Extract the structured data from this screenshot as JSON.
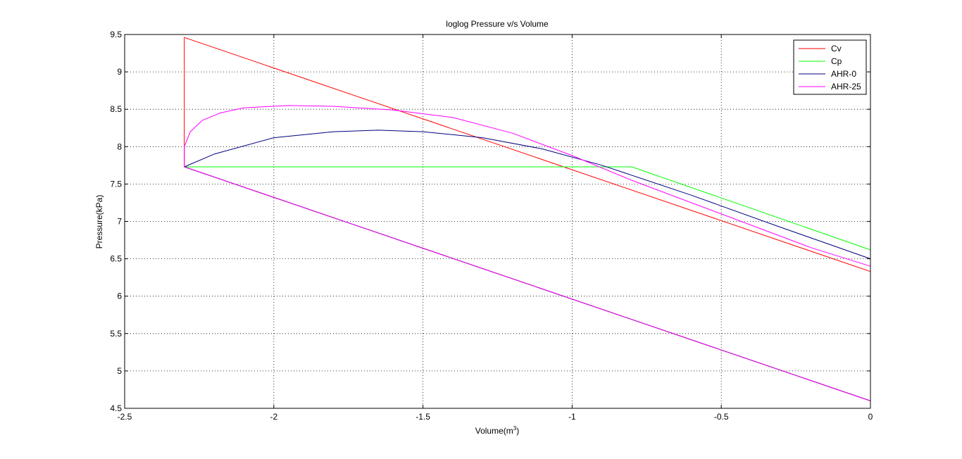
{
  "chart_data": {
    "type": "line",
    "title": "loglog Pressure v/s Volume",
    "xlabel": "Volume(m",
    "xlabel_sup": "3",
    "xlabel_close": ")",
    "ylabel": "Pressure(kPa)",
    "xlim": [
      -2.5,
      0
    ],
    "ylim": [
      4.5,
      9.5
    ],
    "xticks": [
      -2.5,
      -2,
      -1.5,
      -1,
      -0.5,
      0
    ],
    "xtick_labels": [
      "-2.5",
      "-2",
      "-1.5",
      "-1",
      "-0.5",
      "0"
    ],
    "yticks": [
      4.5,
      5,
      5.5,
      6,
      6.5,
      7,
      7.5,
      8,
      8.5,
      9,
      9.5
    ],
    "ytick_labels": [
      "4.5",
      "5",
      "5.5",
      "6",
      "6.5",
      "7",
      "7.5",
      "8",
      "8.5",
      "9",
      "9.5"
    ],
    "grid": true,
    "legend_position": "top-right",
    "series": [
      {
        "name": "Cv",
        "color": "#ff0000",
        "x": [
          0,
          -2.3,
          -2.3,
          0
        ],
        "y": [
          4.6,
          7.73,
          9.46,
          6.33
        ]
      },
      {
        "name": "Cp",
        "color": "#00ff00",
        "x": [
          0,
          -2.3,
          -0.8,
          0
        ],
        "y": [
          4.6,
          7.73,
          7.73,
          6.62
        ]
      },
      {
        "name": "AHR-0",
        "color": "#000080",
        "x": [
          0,
          -2.3,
          -2.2,
          -2.0,
          -1.8,
          -1.65,
          -1.5,
          -1.3,
          -1.1,
          -0.9,
          -0.6,
          -0.3,
          0
        ],
        "y": [
          4.6,
          7.73,
          7.9,
          8.12,
          8.2,
          8.22,
          8.2,
          8.12,
          7.97,
          7.75,
          7.35,
          6.92,
          6.5
        ]
      },
      {
        "name": "AHR-25",
        "color": "#ff00ff",
        "x": [
          0,
          -2.3,
          -2.3,
          -2.28,
          -2.24,
          -2.18,
          -2.1,
          -1.95,
          -1.8,
          -1.6,
          -1.4,
          -1.2,
          -1.0,
          -0.8,
          -0.5,
          -0.2,
          0
        ],
        "y": [
          4.6,
          7.73,
          8.0,
          8.2,
          8.35,
          8.45,
          8.52,
          8.55,
          8.54,
          8.49,
          8.39,
          8.18,
          7.88,
          7.55,
          7.1,
          6.65,
          6.4
        ]
      }
    ]
  }
}
